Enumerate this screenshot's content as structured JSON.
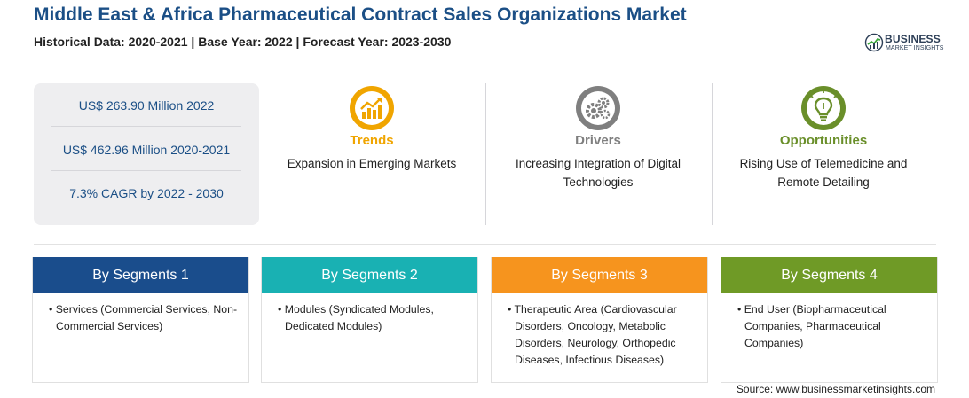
{
  "title": "Middle East & Africa Pharmaceutical Contract Sales Organizations Market",
  "subtitle": "Historical Data: 2020-2021 | Base Year: 2022 | Forecast Year: 2023-2030",
  "logo": {
    "name": "BUSINESS",
    "tagline": "MARKET INSIGHTS"
  },
  "stats": [
    "US$ 263.90 Million 2022",
    "US$ 462.96 Million 2020-2021",
    "7.3% CAGR by 2022 - 2030"
  ],
  "columns": {
    "trends": {
      "title": "Trends",
      "desc": "Expansion in Emerging Markets",
      "color": "#f0a500",
      "icon": "growth-chart-icon"
    },
    "drivers": {
      "title": "Drivers",
      "desc": "Increasing Integration of Digital Technologies",
      "color": "#7f7f7f",
      "icon": "gears-icon"
    },
    "opportunities": {
      "title": "Opportunities",
      "desc": "Rising Use of Telemedicine and Remote Detailing",
      "color": "#6a8f2a",
      "icon": "lightbulb-icon"
    }
  },
  "segments": [
    {
      "title": "By Segments 1",
      "color": "#1a4d8c",
      "items": [
        "Services (Commercial Services, Non-Commercial Services)"
      ]
    },
    {
      "title": "By Segments 2",
      "color": "#19b1b3",
      "items": [
        "Modules (Syndicated Modules, Dedicated Modules)"
      ]
    },
    {
      "title": "By Segments 3",
      "color": "#f6941e",
      "items": [
        "Therapeutic Area (Cardiovascular Disorders, Oncology, Metabolic Disorders, Neurology, Orthopedic Diseases, Infectious Diseases)"
      ]
    },
    {
      "title": "By Segments 4",
      "color": "#6f9a26",
      "items": [
        "End User (Biopharmaceutical Companies, Pharmaceutical Companies)"
      ]
    }
  ],
  "source": "Source: www.businessmarketinsights.com"
}
